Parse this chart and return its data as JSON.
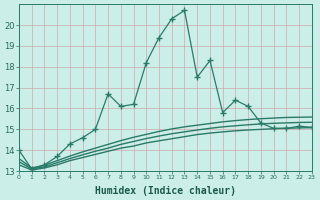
{
  "title": "",
  "xlabel": "Humidex (Indice chaleur)",
  "ylabel": "",
  "background_color": "#cceee8",
  "grid_color": "#bbcccc",
  "line_color": "#2a7a6a",
  "xlim": [
    0,
    23
  ],
  "ylim": [
    13,
    21
  ],
  "yticks": [
    13,
    14,
    15,
    16,
    17,
    18,
    19,
    20
  ],
  "xticks": [
    0,
    1,
    2,
    3,
    4,
    5,
    6,
    7,
    8,
    9,
    10,
    11,
    12,
    13,
    14,
    15,
    16,
    17,
    18,
    19,
    20,
    21,
    22,
    23
  ],
  "xtick_labels": [
    "0",
    "1",
    "2",
    "3",
    "4",
    "5",
    "6",
    "7",
    "8",
    "9",
    "10",
    "11",
    "12",
    "13",
    "14",
    "15",
    "16",
    "17",
    "18",
    "19",
    "20",
    "21",
    "22",
    "23"
  ],
  "series_main_x": [
    0,
    1,
    2,
    3,
    4,
    5,
    6,
    7,
    8,
    9,
    10,
    11,
    12,
    13,
    14,
    15,
    16,
    17,
    18,
    19,
    20,
    21,
    22,
    23
  ],
  "series_main_y": [
    14.0,
    13.1,
    13.3,
    13.7,
    14.3,
    14.6,
    15.0,
    16.7,
    16.1,
    16.2,
    18.2,
    19.4,
    20.3,
    20.7,
    17.5,
    18.3,
    15.8,
    16.4,
    16.1,
    15.3,
    15.05,
    15.05,
    15.15,
    15.1
  ],
  "series_low_x": [
    0,
    1,
    2,
    3,
    4,
    5,
    6,
    7,
    8,
    9,
    10,
    11,
    12,
    13,
    14,
    15,
    16,
    17,
    18,
    19,
    20,
    21,
    22,
    23
  ],
  "series_low_y": [
    13.3,
    13.05,
    13.15,
    13.3,
    13.5,
    13.65,
    13.8,
    13.95,
    14.1,
    14.2,
    14.35,
    14.45,
    14.55,
    14.65,
    14.75,
    14.82,
    14.88,
    14.93,
    14.97,
    15.0,
    15.03,
    15.05,
    15.07,
    15.08
  ],
  "series_mid_x": [
    0,
    1,
    2,
    3,
    4,
    5,
    6,
    7,
    8,
    9,
    10,
    11,
    12,
    13,
    14,
    15,
    16,
    17,
    18,
    19,
    20,
    21,
    22,
    23
  ],
  "series_mid_y": [
    13.45,
    13.1,
    13.2,
    13.4,
    13.6,
    13.78,
    13.95,
    14.1,
    14.28,
    14.42,
    14.56,
    14.68,
    14.79,
    14.88,
    14.97,
    15.05,
    15.12,
    15.17,
    15.22,
    15.26,
    15.29,
    15.31,
    15.33,
    15.34
  ],
  "series_high_x": [
    0,
    1,
    2,
    3,
    4,
    5,
    6,
    7,
    8,
    9,
    10,
    11,
    12,
    13,
    14,
    15,
    16,
    17,
    18,
    19,
    20,
    21,
    22,
    23
  ],
  "series_high_y": [
    13.6,
    13.15,
    13.28,
    13.5,
    13.72,
    13.92,
    14.1,
    14.28,
    14.46,
    14.62,
    14.76,
    14.9,
    15.02,
    15.12,
    15.2,
    15.28,
    15.36,
    15.42,
    15.47,
    15.51,
    15.54,
    15.57,
    15.58,
    15.59
  ]
}
